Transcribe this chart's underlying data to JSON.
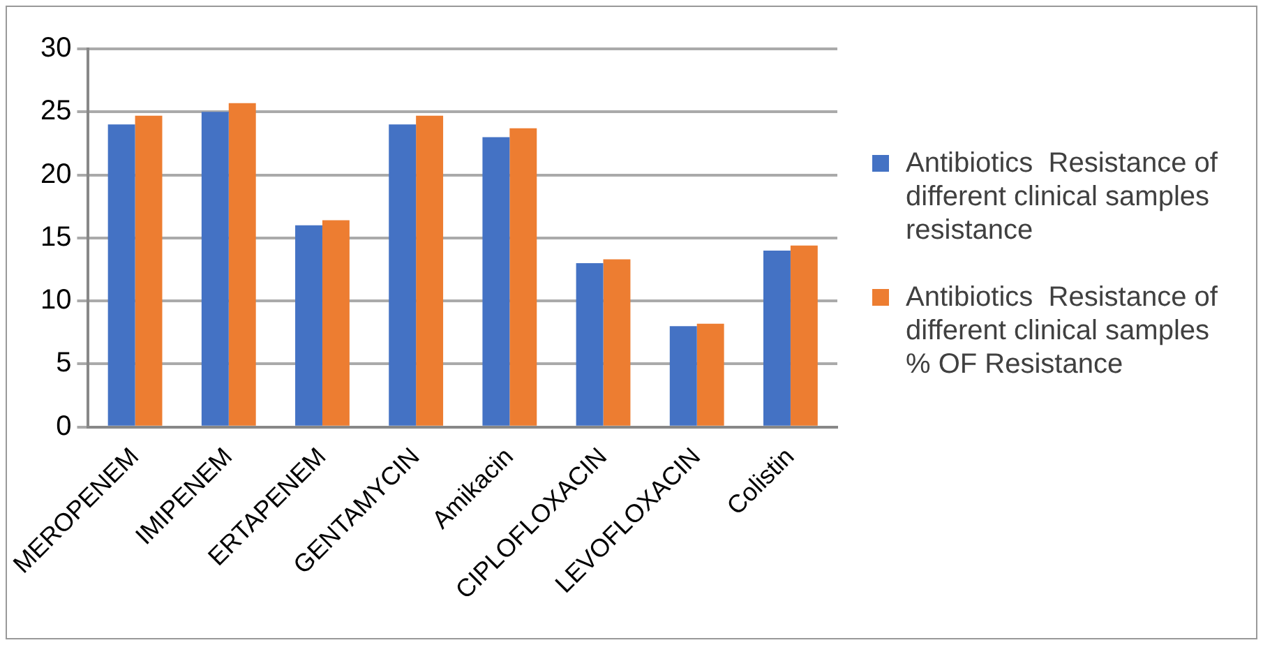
{
  "chart_data": {
    "type": "bar",
    "categories": [
      "MEROPENEM",
      "IMIPENEM",
      "ERTAPENEM",
      "GENTAMYCIN",
      "Amikacin",
      "CIPLOFLOXACIN",
      "LEVOFLOXACIN",
      "Colistin"
    ],
    "series": [
      {
        "name": "Antibiotics  Resistance of different clinical samples  resistance",
        "color": "#4472c4",
        "values": [
          24,
          25,
          16,
          24,
          23,
          13,
          8,
          14
        ]
      },
      {
        "name": "Antibiotics  Resistance of different clinical samples  % OF Resistance",
        "color": "#ed7d31",
        "values": [
          24.7,
          25.7,
          16.4,
          24.7,
          23.7,
          13.3,
          8.2,
          14.4
        ]
      }
    ],
    "ylim": [
      0,
      30
    ],
    "yticks": [
      0,
      5,
      10,
      15,
      20,
      25,
      30
    ],
    "grid": "y",
    "legend": "right"
  }
}
